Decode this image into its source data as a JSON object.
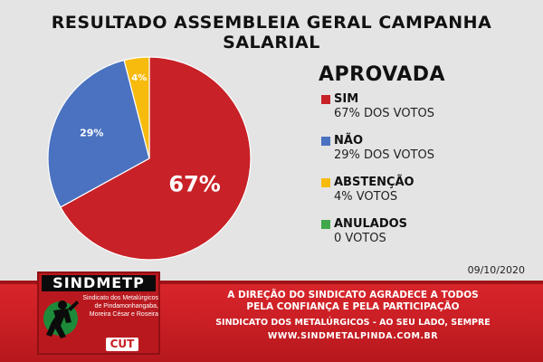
{
  "title": "RESULTADO ASSEMBLEIA GERAL CAMPANHA SALARIAL",
  "result_label": "APROVADA",
  "date": "09/10/2020",
  "colors": {
    "sim": "#c82127",
    "nao": "#4a72c0",
    "abstencao": "#f7bb0e",
    "anulados": "#3fa84a",
    "banner": "#c81e24"
  },
  "chart_data": {
    "type": "pie",
    "title": "RESULTADO ASSEMBLEIA GERAL CAMPANHA SALARIAL",
    "slices": [
      {
        "name": "SIM",
        "value": 67,
        "label": "67%",
        "detail": "67% DOS VOTOS",
        "color": "#c82127"
      },
      {
        "name": "NÃO",
        "value": 29,
        "label": "29%",
        "detail": "29% DOS VOTOS",
        "color": "#4a72c0"
      },
      {
        "name": "ABSTENÇÃO",
        "value": 4,
        "label": "4%",
        "detail": "4% VOTOS",
        "color": "#f7bb0e"
      },
      {
        "name": "ANULADOS",
        "value": 0,
        "label": "",
        "detail": "0 VOTOS",
        "color": "#3fa84a"
      }
    ],
    "legend": "right"
  },
  "banner": {
    "thanks_line1": "A DIREÇÃO DO SINDICATO AGRADECE A TODOS",
    "thanks_line2": "PELA CONFIANÇA E PELA PARTICIPAÇÃO",
    "footer_line1": "SINDICATO DOS METALÚRGICOS - AO SEU LADO, SEMPRE",
    "footer_line2": "WWW.SINDMETALPINDA.COM.BR"
  },
  "logo": {
    "name": "SINDMETP",
    "sub_line1": "Sindicato dos Metalúrgicos",
    "sub_line2": "de Pindamonhangaba,",
    "sub_line3": "Moreira César e Roseira",
    "badge": "CUT"
  }
}
